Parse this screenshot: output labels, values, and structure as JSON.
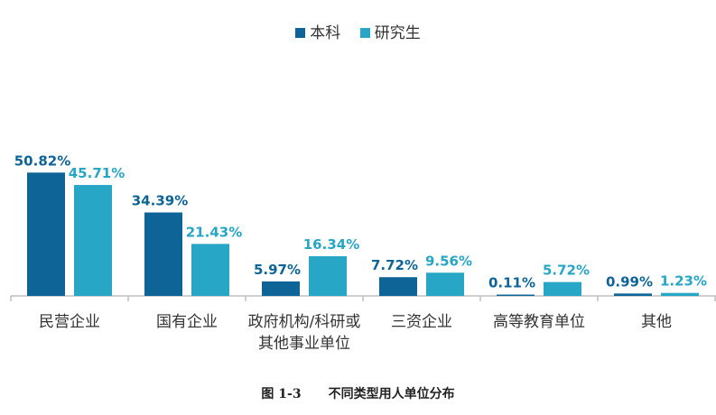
{
  "legend": {
    "series1": "本科",
    "series2": "研究生"
  },
  "caption": {
    "figure_number": "图 1-3",
    "title": "不同类型用人单位分布"
  },
  "chart_data": {
    "type": "bar",
    "categories": [
      "民营企业",
      "国有企业",
      "政府机构/科研或\n其他事业单位",
      "三资企业",
      "高等教育单位",
      "其他"
    ],
    "series": [
      {
        "name": "本科",
        "values": [
          50.82,
          34.39,
          5.97,
          7.72,
          0.11,
          0.99
        ],
        "labels": [
          "50.82%",
          "34.39%",
          "5.97%",
          "7.72%",
          "0.11%",
          "0.99%"
        ],
        "color": "#0e6496"
      },
      {
        "name": "研究生",
        "values": [
          45.71,
          21.43,
          16.34,
          9.56,
          5.72,
          1.23
        ],
        "labels": [
          "45.71%",
          "21.43%",
          "16.34%",
          "9.56%",
          "5.72%",
          "1.23%"
        ],
        "color": "#27a6c6"
      }
    ],
    "ylim": [
      0,
      60
    ],
    "title": "",
    "xlabel": "",
    "ylabel": ""
  }
}
